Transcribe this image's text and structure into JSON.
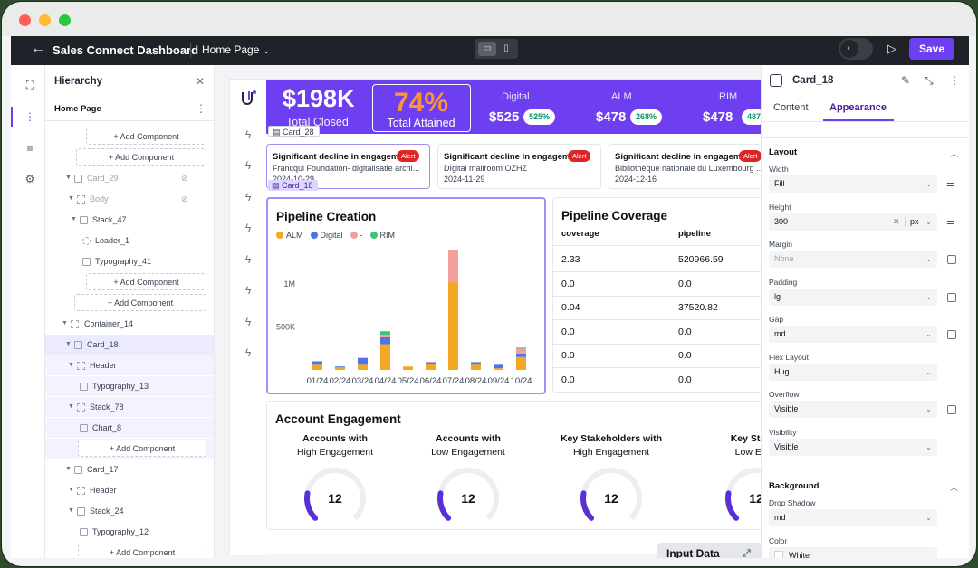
{
  "app": {
    "title": "Sales Connect Dashboard",
    "page": "Home Page",
    "save_label": "Save"
  },
  "hierarchy": {
    "title": "Hierarchy",
    "page_label": "Home Page",
    "add_label": "Add Component",
    "rows": [
      {
        "label": "Card_29"
      },
      {
        "label": "Body"
      },
      {
        "label": "Stack_47"
      },
      {
        "label": "Loader_1"
      },
      {
        "label": "Typography_41"
      },
      {
        "label": "Container_14"
      },
      {
        "label": "Card_18"
      },
      {
        "label": "Header"
      },
      {
        "label": "Typography_13"
      },
      {
        "label": "Stack_78"
      },
      {
        "label": "Chart_8"
      },
      {
        "label": "Card_17"
      },
      {
        "label": "Header"
      },
      {
        "label": "Stack_24"
      },
      {
        "label": "Typography_12"
      }
    ]
  },
  "banner": {
    "closed_value": "$198K",
    "closed_label": "Total Closed",
    "attained_value": "74%",
    "attained_label": "Total Attained",
    "metrics": [
      {
        "label": "Digital",
        "value": "$525",
        "pct": "525%"
      },
      {
        "label": "ALM",
        "value": "$478",
        "pct": "268%"
      },
      {
        "label": "RIM",
        "value": "$478",
        "pct": "487"
      }
    ]
  },
  "tags": {
    "card28": "Card_28",
    "card18": "Card_18"
  },
  "alerts": [
    {
      "title": "Significant decline in engagem...",
      "badge": "Alert",
      "sub": "Francqui Foundation- digitalisatie archi...",
      "date": "2024-10-29"
    },
    {
      "title": "Significant decline in engagem...",
      "badge": "Alert",
      "sub": "DIgital mailroom OZHZ",
      "date": "2024-11-29"
    },
    {
      "title": "Significant decline in engagem...",
      "badge": "Alert",
      "sub": "Bibliothèque nationale du Luxembourg ...",
      "date": "2024-12-16"
    }
  ],
  "pipeline_coverage": {
    "title": "Pipeline Coverage",
    "headers": [
      "coverage",
      "pipeline"
    ],
    "rows": [
      [
        "2.33",
        "520966.59"
      ],
      [
        "0.0",
        "0.0"
      ],
      [
        "0.04",
        "37520.82"
      ],
      [
        "0.0",
        "0.0"
      ],
      [
        "0.0",
        "0.0"
      ],
      [
        "0.0",
        "0.0"
      ]
    ]
  },
  "engagement": {
    "title": "Account Engagement",
    "gauges": [
      {
        "line1": "Accounts with",
        "line2": "High Engagement",
        "value": "12"
      },
      {
        "line1": "Accounts with",
        "line2": "Low Engagement",
        "value": "12"
      },
      {
        "line1": "Key Stakeholders with",
        "line2": "High Engagement",
        "value": "12"
      },
      {
        "line1": "Key Stakeh",
        "line2": "Low Enga",
        "value": "12"
      }
    ]
  },
  "input_data_label": "Input Data",
  "right_panel": {
    "title": "Card_18",
    "tabs": [
      "Content",
      "Appearance"
    ],
    "layout": "Layout",
    "width_label": "Width",
    "width_value": "Fill",
    "height_label": "Height",
    "height_value": "300",
    "height_unit": "px",
    "margin_label": "Margin",
    "margin_value": "None",
    "padding_label": "Padding",
    "padding_value": "lg",
    "gap_label": "Gap",
    "gap_value": "md",
    "flex_label": "Flex Layout",
    "flex_value": "Hug",
    "overflow_label": "Overflow",
    "overflow_value": "Visible",
    "visibility_label": "Visibility",
    "visibility_value": "Visible",
    "background": "Background",
    "shadow_label": "Drop Shadow",
    "shadow_value": "md",
    "color_label": "Color",
    "color_value": "White"
  },
  "colors": {
    "accent": "#6d3ff0",
    "alm": "#f5a623",
    "digital": "#4f74e3",
    "dash": "#f4a09a",
    "rim": "#3ec27a"
  },
  "chart_data": {
    "type": "bar",
    "title": "Pipeline Creation",
    "stacked": true,
    "categories": [
      "01/24",
      "02/24",
      "03/24",
      "04/24",
      "05/24",
      "06/24",
      "07/24",
      "08/24",
      "09/24",
      "10/24"
    ],
    "series": [
      {
        "name": "ALM",
        "color": "#f5a623",
        "values": [
          60000,
          30000,
          60000,
          300000,
          40000,
          70000,
          1020000,
          60000,
          20000,
          150000
        ]
      },
      {
        "name": "Digital",
        "color": "#4f74e3",
        "values": [
          40000,
          10000,
          80000,
          80000,
          0,
          20000,
          0,
          30000,
          40000,
          40000
        ]
      },
      {
        "name": "-",
        "color": "#f4a09a",
        "values": [
          0,
          0,
          0,
          30000,
          0,
          0,
          380000,
          0,
          0,
          60000
        ]
      },
      {
        "name": "RIM",
        "color": "#3ec27a",
        "values": [
          0,
          0,
          0,
          40000,
          0,
          0,
          0,
          0,
          0,
          10000
        ]
      }
    ],
    "yticks": [
      {
        "v": 500000,
        "label": "500K"
      },
      {
        "v": 1000000,
        "label": "1M"
      }
    ],
    "ylim": [
      0,
      1400000
    ],
    "grid": false,
    "legend_position": "top-left"
  }
}
